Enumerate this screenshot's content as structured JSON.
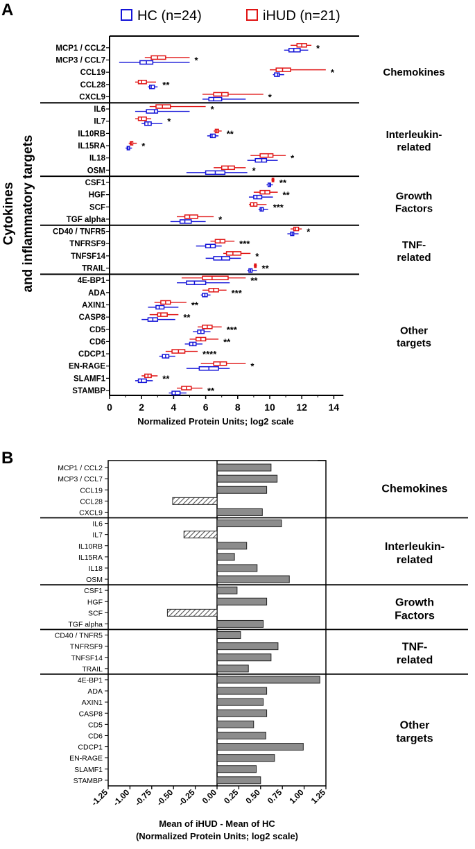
{
  "panels": {
    "a": "A",
    "b": "B"
  },
  "legend": {
    "hc": {
      "label": "HC (n=24)",
      "color": "#1414d8"
    },
    "ihud": {
      "label": "iHUD (n=21)",
      "color": "#e01414"
    }
  },
  "ylabel_line1": "Cytokines",
  "ylabel_line2": "and inflammatory targets",
  "groups": [
    {
      "line1": "Chemokines",
      "line2": ""
    },
    {
      "line1": "Interleukin-",
      "line2": "related"
    },
    {
      "line1": "Growth",
      "line2": "Factors"
    },
    {
      "line1": "TNF-",
      "line2": "related"
    },
    {
      "line1": "Other",
      "line2": "targets"
    }
  ],
  "chart_data": [
    {
      "type": "box",
      "xlabel": "Normalized Protein Units; log2 scale",
      "xlim": [
        0,
        15
      ],
      "xticks": [
        "0",
        "2",
        "4",
        "6",
        "8",
        "10",
        "12",
        "14"
      ],
      "categories": [
        "MCP1 / CCL2",
        "MCP3 / CCL7",
        "CCL19",
        "CCL28",
        "CXCL9",
        "IL6",
        "IL7",
        "IL10RB",
        "IL15RA",
        "IL18",
        "OSM",
        "CSF1",
        "HGF",
        "SCF",
        "TGF alpha",
        "CD40 / TNFR5",
        "TNFRSF9",
        "TNFSF14",
        "TRAIL",
        "4E-BP1",
        "ADA",
        "AXIN1",
        "CASP8",
        "CD5",
        "CD6",
        "CDCP1",
        "EN-RAGE",
        "SLAMF1",
        "STAMBP"
      ],
      "series": [
        {
          "name": "iHUD",
          "color": "#e01414",
          "min": [
            11.3,
            2.2,
            10.0,
            1.6,
            5.8,
            2.5,
            1.6,
            6.5,
            1.2,
            8.8,
            6.5,
            10.1,
            9.0,
            8.7,
            4.2,
            11.3,
            6.3,
            7.1,
            9.0,
            4.5,
            5.8,
            2.8,
            2.5,
            5.5,
            5.0,
            3.5,
            5.7,
            2.0,
            4.2
          ],
          "q1": [
            11.7,
            2.6,
            10.4,
            1.8,
            6.5,
            2.9,
            1.8,
            6.6,
            1.3,
            9.4,
            7.0,
            10.15,
            9.4,
            8.8,
            4.7,
            11.5,
            6.6,
            7.3,
            9.05,
            5.8,
            6.2,
            3.2,
            3.0,
            5.8,
            5.4,
            3.9,
            6.5,
            2.2,
            4.5
          ],
          "med": [
            12.0,
            3.0,
            10.8,
            2.0,
            7.0,
            3.3,
            2.0,
            6.7,
            1.35,
            9.9,
            7.4,
            10.2,
            9.7,
            9.0,
            5.0,
            11.6,
            6.9,
            7.7,
            9.1,
            6.4,
            6.5,
            3.5,
            3.2,
            6.1,
            5.7,
            4.3,
            6.9,
            2.4,
            4.8
          ],
          "q3": [
            12.3,
            3.5,
            11.3,
            2.3,
            7.4,
            3.8,
            2.3,
            6.8,
            1.45,
            10.2,
            7.8,
            10.25,
            10.0,
            9.2,
            5.5,
            11.8,
            7.2,
            8.2,
            9.15,
            7.4,
            6.8,
            3.8,
            3.6,
            6.4,
            6.0,
            4.7,
            7.3,
            2.6,
            5.1
          ],
          "max": [
            12.6,
            5.0,
            13.5,
            2.9,
            9.6,
            6.0,
            2.6,
            7.0,
            1.7,
            11.0,
            8.5,
            10.3,
            10.5,
            9.8,
            6.5,
            12.0,
            7.8,
            8.8,
            9.2,
            8.5,
            7.3,
            4.8,
            4.3,
            7.0,
            6.8,
            5.5,
            8.5,
            3.0,
            5.8
          ]
        },
        {
          "name": "HC",
          "color": "#1414d8",
          "min": [
            10.9,
            0.6,
            10.2,
            2.4,
            5.8,
            1.6,
            2.0,
            6.1,
            1.0,
            8.6,
            4.8,
            9.8,
            8.7,
            9.3,
            3.8,
            11.1,
            5.4,
            6.0,
            8.6,
            4.2,
            5.7,
            2.4,
            2.0,
            5.2,
            4.7,
            3.1,
            4.8,
            1.6,
            3.7
          ],
          "q1": [
            11.2,
            1.9,
            10.3,
            2.5,
            6.2,
            2.3,
            2.2,
            6.3,
            1.1,
            9.1,
            6.0,
            9.9,
            9.0,
            9.4,
            4.4,
            11.3,
            6.0,
            6.5,
            8.7,
            4.8,
            5.8,
            2.9,
            2.4,
            5.5,
            5.0,
            3.3,
            5.6,
            1.8,
            3.9
          ],
          "med": [
            11.5,
            2.3,
            10.5,
            2.6,
            6.5,
            2.8,
            2.4,
            6.4,
            1.15,
            9.5,
            6.6,
            10.0,
            9.2,
            9.5,
            4.7,
            11.4,
            6.3,
            7.0,
            8.8,
            5.3,
            5.95,
            3.1,
            2.7,
            5.7,
            5.2,
            3.5,
            6.2,
            2.0,
            4.1
          ],
          "q3": [
            11.9,
            2.7,
            10.6,
            2.8,
            7.0,
            3.0,
            2.6,
            6.6,
            1.25,
            9.8,
            7.2,
            10.05,
            9.5,
            9.6,
            5.1,
            11.5,
            6.6,
            7.5,
            8.9,
            6.0,
            6.1,
            3.4,
            3.0,
            5.9,
            5.4,
            3.7,
            6.8,
            2.3,
            4.4
          ],
          "max": [
            12.4,
            5.0,
            10.9,
            3.0,
            8.5,
            5.0,
            3.3,
            6.8,
            1.4,
            10.5,
            8.6,
            10.2,
            10.2,
            9.9,
            6.0,
            11.8,
            7.0,
            8.2,
            9.2,
            7.5,
            6.3,
            4.3,
            4.1,
            6.3,
            5.8,
            4.1,
            7.5,
            2.7,
            4.8
          ]
        }
      ],
      "significance": [
        "*",
        "*",
        "*",
        "**",
        "*",
        "*",
        "*",
        "**",
        "*",
        "*",
        "*",
        "**",
        "**",
        "***",
        "*",
        "*",
        "***",
        "*",
        "**",
        "**",
        "***",
        "**",
        "**",
        "***",
        "**",
        "****",
        "*",
        "**",
        "**"
      ]
    },
    {
      "type": "bar",
      "orientation": "horizontal",
      "xlabel_line1": "Mean of iHUD - Mean of HC",
      "xlabel_line2": "(Normalized Protein Units; log2 scale)",
      "xlim": [
        -1.25,
        1.25
      ],
      "xticks": [
        "-1.25",
        "-1.00",
        "-0.75",
        "-0.50",
        "-0.25",
        "0.00",
        "0.25",
        "0.50",
        "0.75",
        "1.00",
        "1.25"
      ],
      "categories": [
        "MCP1 / CCL2",
        "MCP3 / CCL7",
        "CCL19",
        "CCL28",
        "CXCL9",
        "IL6",
        "IL7",
        "IL10RB",
        "IL15RA",
        "IL18",
        "OSM",
        "CSF1",
        "HGF",
        "SCF",
        "TGF alpha",
        "CD40 / TNFR5",
        "TNFRSF9",
        "TNFSF14",
        "TRAIL",
        "4E-BP1",
        "ADA",
        "AXIN1",
        "CASP8",
        "CD5",
        "CD6",
        "CDCP1",
        "EN-RAGE",
        "SLAMF1",
        "STAMBP"
      ],
      "values": [
        0.62,
        0.69,
        0.57,
        -0.51,
        0.52,
        0.74,
        -0.38,
        0.34,
        0.2,
        0.46,
        0.83,
        0.23,
        0.57,
        -0.57,
        0.53,
        0.27,
        0.7,
        0.62,
        0.36,
        1.18,
        0.57,
        0.53,
        0.57,
        0.42,
        0.56,
        0.99,
        0.66,
        0.45,
        0.5
      ],
      "colors": {
        "positive": "#8c8c8c",
        "negative_pattern": "diagonal-hatch"
      }
    }
  ]
}
